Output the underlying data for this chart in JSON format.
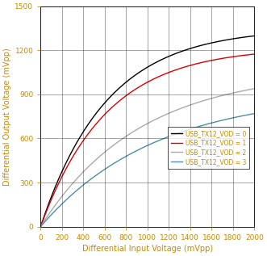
{
  "xlabel": "Differential Input Voltage (mVpp)",
  "ylabel": "Differential Output Voltage (mVpp)",
  "xlim": [
    0,
    2000
  ],
  "ylim": [
    0,
    1500
  ],
  "xticks": [
    0,
    200,
    400,
    600,
    800,
    1000,
    1200,
    1400,
    1600,
    1800,
    2000
  ],
  "yticks": [
    0,
    300,
    600,
    900,
    1200,
    1500
  ],
  "legend_labels": [
    "USB_TX12_VOD = 0",
    "USB_TX12_VOD = 1",
    "USB_TX12_VOD = 2",
    "USB_TX12_VOD = 3"
  ],
  "line_colors": [
    "#000000",
    "#dd0000",
    "#aaaaaa",
    "#4a8fa8"
  ],
  "tick_color": "#cc8800",
  "label_color": "#cc8800",
  "legend_text_color": "#cc8800",
  "vod0_params": {
    "v_sat": 1350,
    "k": 2.2
  },
  "vod1_params": {
    "v_sat": 1220,
    "k": 2.0
  },
  "vod2_params": {
    "v_sat": 1060,
    "k": 1.15
  },
  "vod3_params": {
    "v_sat": 910,
    "k": 0.85
  }
}
